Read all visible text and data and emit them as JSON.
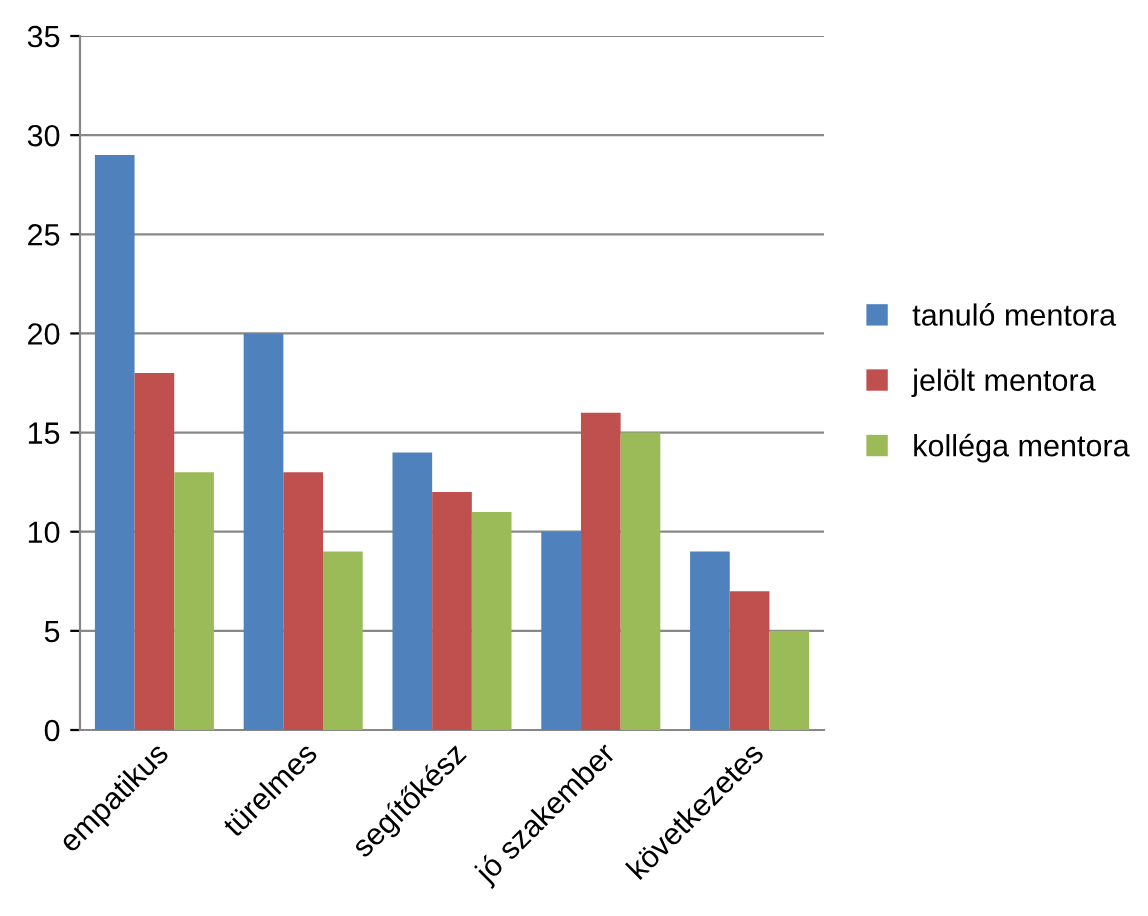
{
  "chart_data": {
    "type": "bar",
    "categories": [
      "empatikus",
      "türelmes",
      "segítőkész",
      "jó szakember",
      "következetes"
    ],
    "series": [
      {
        "name": "tanuló mentora",
        "color": "#4f81bd",
        "values": [
          29,
          20,
          14,
          10,
          9
        ]
      },
      {
        "name": "jelölt mentora",
        "color": "#c0504d",
        "values": [
          18,
          13,
          12,
          16,
          7
        ]
      },
      {
        "name": "kolléga mentora",
        "color": "#9bbb59",
        "values": [
          13,
          9,
          11,
          15,
          5
        ]
      }
    ],
    "ylim": [
      0,
      35
    ],
    "yticks": [
      0,
      5,
      10,
      15,
      20,
      25,
      30,
      35
    ],
    "grid": "y",
    "legend": "right"
  }
}
